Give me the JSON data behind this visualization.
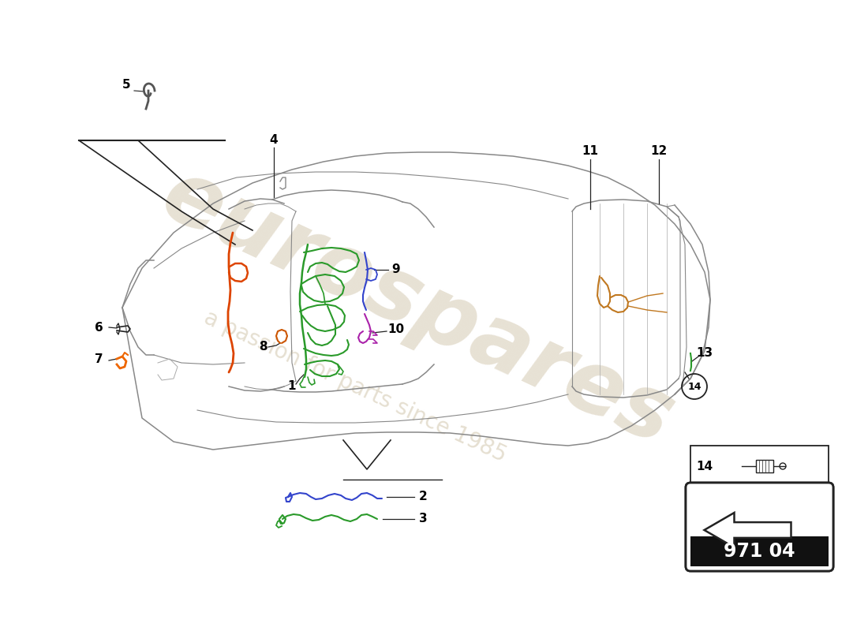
{
  "page_code": "971 04",
  "background_color": "#ffffff",
  "watermark_text": "eurospares",
  "watermark_subtext": "a passion for parts since 1985",
  "watermark_color": "#d8ceb8",
  "green": "#2a9a2a",
  "blue": "#3344cc",
  "purple": "#aa22aa",
  "orange": "#dd4400",
  "tan": "#c07820",
  "dark": "#222222",
  "gray": "#888888",
  "light_gray": "#aaaaaa"
}
